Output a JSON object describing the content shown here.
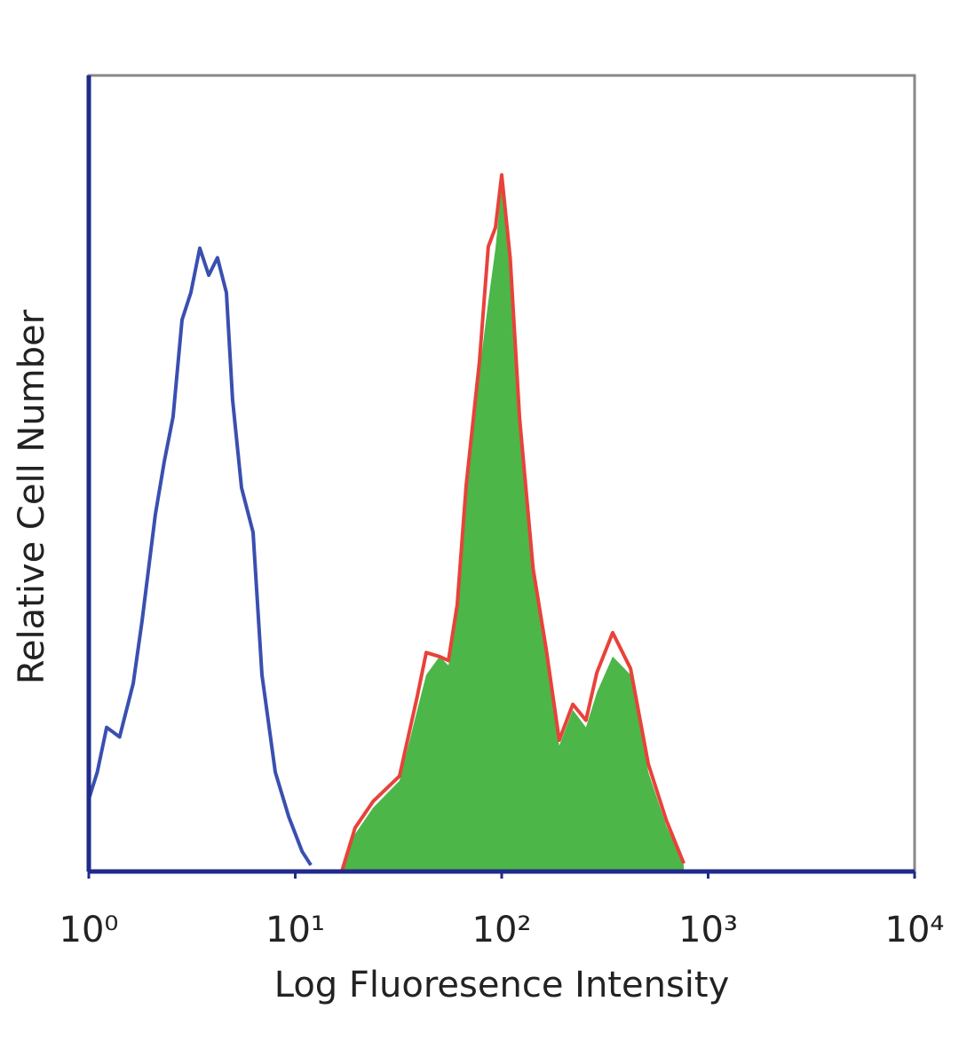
{
  "chart_data": {
    "type": "histogram-overlay",
    "x_label": "Log Fluoresence Intensity",
    "y_label": "Relative Cell Number",
    "xscale": "log",
    "xlim": [
      1,
      10000
    ],
    "ylim": [
      0,
      100
    ],
    "xticks": [
      {
        "value": 1,
        "label": "10⁰"
      },
      {
        "value": 10,
        "label": "10¹"
      },
      {
        "value": 100,
        "label": "10²"
      },
      {
        "value": 1000,
        "label": "10³"
      },
      {
        "value": 10000,
        "label": "10⁴"
      }
    ],
    "series": [
      {
        "color": "#4cb648",
        "fill": true,
        "x": [
          16.8,
          19.5,
          23.8,
          32.0,
          39.0,
          43.1,
          50.0,
          55.2,
          60.9,
          67.3,
          78.0,
          86.1,
          93.3,
          100,
          110,
          122,
          142,
          164,
          190,
          221,
          256,
          289,
          345,
          421,
          513,
          626,
          762
        ],
        "values": [
          0,
          4.7,
          8.0,
          11.4,
          20.3,
          24.7,
          27.0,
          25.9,
          32.6,
          47.0,
          62.7,
          71.6,
          78.3,
          86.1,
          76.0,
          56.0,
          37.0,
          27.0,
          15.8,
          20.3,
          18.1,
          22.5,
          27.0,
          24.7,
          12.5,
          5.8,
          0.8
        ]
      },
      {
        "color": "#e8423a",
        "fill": false,
        "x": [
          16.8,
          19.5,
          23.8,
          32.0,
          39.0,
          43.1,
          50.0,
          55.2,
          60.9,
          67.3,
          78.0,
          86.1,
          93.3,
          100,
          110,
          122,
          142,
          164,
          190,
          221,
          256,
          289,
          345,
          421,
          513,
          626,
          762
        ],
        "values": [
          0,
          5.5,
          8.8,
          12.0,
          22.0,
          27.5,
          27.0,
          26.5,
          33.5,
          48.5,
          64.0,
          78.5,
          80.9,
          87.5,
          77.0,
          57.0,
          38.0,
          28.0,
          16.5,
          21.0,
          19.0,
          25.0,
          30.0,
          25.5,
          13.5,
          6.5,
          1.0
        ]
      },
      {
        "color": "#3a4fb0",
        "fill": false,
        "x": [
          1.0,
          1.1,
          1.22,
          1.41,
          1.64,
          1.81,
          2.1,
          2.32,
          2.56,
          2.83,
          3.12,
          3.45,
          3.81,
          4.2,
          4.64,
          4.97,
          5.49,
          6.25,
          6.9,
          8.0,
          9.29,
          10.8,
          11.9
        ],
        "values": [
          9.1,
          12.5,
          18.1,
          16.9,
          23.6,
          31.4,
          44.8,
          51.5,
          57.1,
          69.3,
          72.7,
          78.3,
          74.9,
          77.1,
          72.7,
          59.3,
          48.2,
          42.6,
          24.7,
          12.5,
          6.9,
          2.5,
          0.8
        ]
      }
    ]
  }
}
